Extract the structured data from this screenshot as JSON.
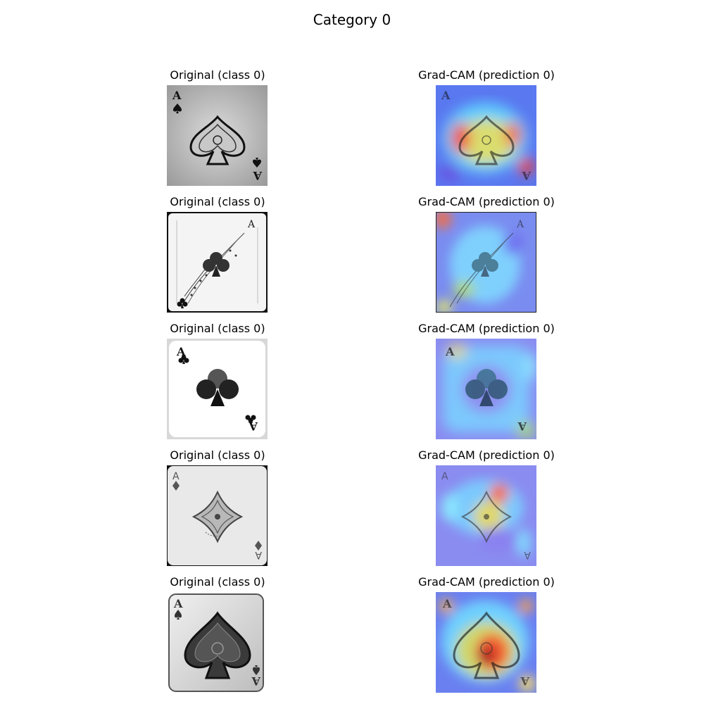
{
  "figure": {
    "title": "Category 0"
  },
  "rows": [
    {
      "original_title": "Original (class 0)",
      "gradcam_title": "Grad-CAM (prediction 0)",
      "card": {
        "rank": "A",
        "suit": "spade",
        "style": "ornate-grunge"
      }
    },
    {
      "original_title": "Original (class 0)",
      "gradcam_title": "Grad-CAM (prediction 0)",
      "card": {
        "rank": "A",
        "suit": "club",
        "style": "floral-sketch"
      }
    },
    {
      "original_title": "Original (class 0)",
      "gradcam_title": "Grad-CAM (prediction 0)",
      "card": {
        "rank": "A",
        "suit": "club",
        "style": "plain"
      }
    },
    {
      "original_title": "Original (class 0)",
      "gradcam_title": "Grad-CAM (prediction 0)",
      "card": {
        "rank": "A",
        "suit": "diamond",
        "style": "ornate-light"
      }
    },
    {
      "original_title": "Original (class 0)",
      "gradcam_title": "Grad-CAM (prediction 0)",
      "card": {
        "rank": "A",
        "suit": "spade",
        "style": "embossed"
      }
    }
  ],
  "heatmap_colors": {
    "low": "#3b3bff",
    "mid": "#58e0ff",
    "midhigh": "#f0f060",
    "high": "#ff3020",
    "peak": "#8b0000"
  }
}
